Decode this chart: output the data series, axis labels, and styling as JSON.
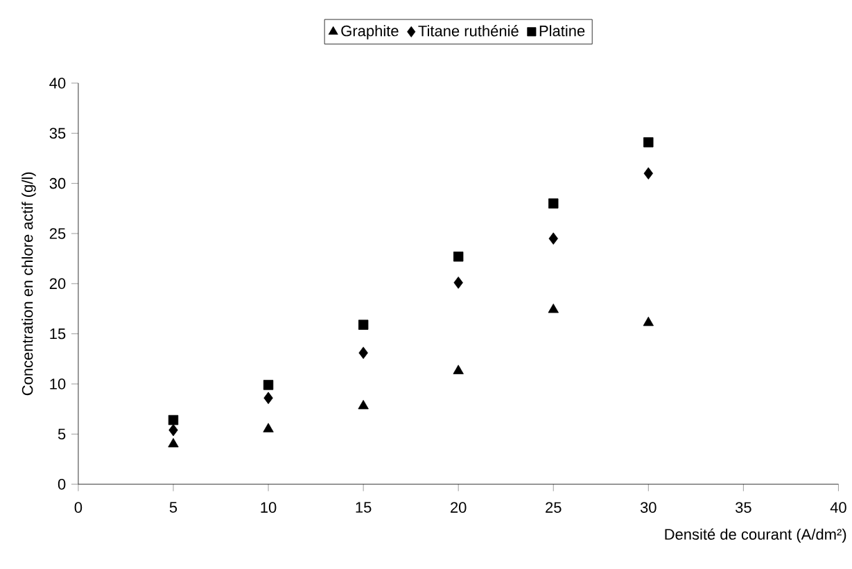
{
  "chart_data": {
    "type": "scatter",
    "xlabel": "Densité de courant (A/dm²)",
    "ylabel": "Concentration en chlore actif (g/l)",
    "x": [
      5,
      10,
      15,
      20,
      25,
      30
    ],
    "series": [
      {
        "name": "Graphite",
        "color": "#000000",
        "marker": "triangle",
        "values": [
          4.0,
          5.5,
          7.8,
          11.3,
          17.4,
          16.1
        ]
      },
      {
        "name": "Titane ruthénié",
        "color": "#000000",
        "marker": "diamond",
        "values": [
          5.4,
          8.6,
          13.1,
          20.1,
          24.5,
          31.0
        ]
      },
      {
        "name": "Platine",
        "color": "#000000",
        "marker": "square",
        "values": [
          6.4,
          9.9,
          15.9,
          22.7,
          28.0,
          34.1
        ]
      }
    ],
    "xlim": [
      0,
      40
    ],
    "ylim": [
      0,
      40
    ],
    "xticks": [
      0,
      5,
      10,
      15,
      20,
      25,
      30,
      35,
      40
    ],
    "yticks": [
      0,
      5,
      10,
      15,
      20,
      25,
      30,
      35,
      40
    ],
    "grid": false,
    "legend": "top"
  }
}
